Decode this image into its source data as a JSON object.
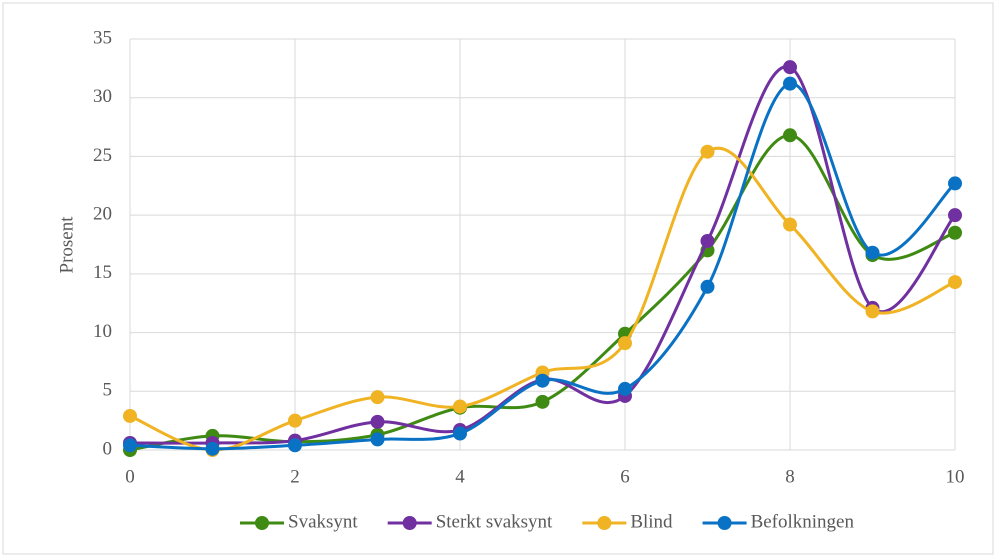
{
  "chart_data": {
    "type": "line",
    "ylabel": "Prosent",
    "x": [
      0,
      1,
      2,
      3,
      4,
      5,
      6,
      7,
      8,
      9,
      10
    ],
    "series": [
      {
        "name": "Svaksynt",
        "color": "#3f8a12",
        "values": [
          0.0,
          1.2,
          0.7,
          1.3,
          3.6,
          4.1,
          9.9,
          17.0,
          26.8,
          16.6,
          18.5
        ]
      },
      {
        "name": "Sterkt svaksynt",
        "color": "#7030a0",
        "values": [
          0.6,
          0.6,
          0.8,
          2.4,
          1.7,
          6.0,
          4.6,
          17.8,
          32.6,
          12.1,
          20.0
        ]
      },
      {
        "name": "Blind",
        "color": "#f0b323",
        "values": [
          2.9,
          0.0,
          2.5,
          4.5,
          3.7,
          6.6,
          9.1,
          25.4,
          19.2,
          11.8,
          14.3
        ]
      },
      {
        "name": "Befolkningen",
        "color": "#0a72c4",
        "values": [
          0.4,
          0.1,
          0.4,
          0.9,
          1.4,
          5.9,
          5.2,
          13.9,
          31.2,
          16.8,
          22.7
        ]
      }
    ],
    "xlim": [
      0,
      10
    ],
    "xticks": [
      0,
      2,
      4,
      6,
      8,
      10
    ],
    "ylim": [
      0,
      35
    ],
    "yticks": [
      0,
      5,
      10,
      15,
      20,
      25,
      30,
      35
    ],
    "grid": true,
    "legend": "bottom"
  }
}
